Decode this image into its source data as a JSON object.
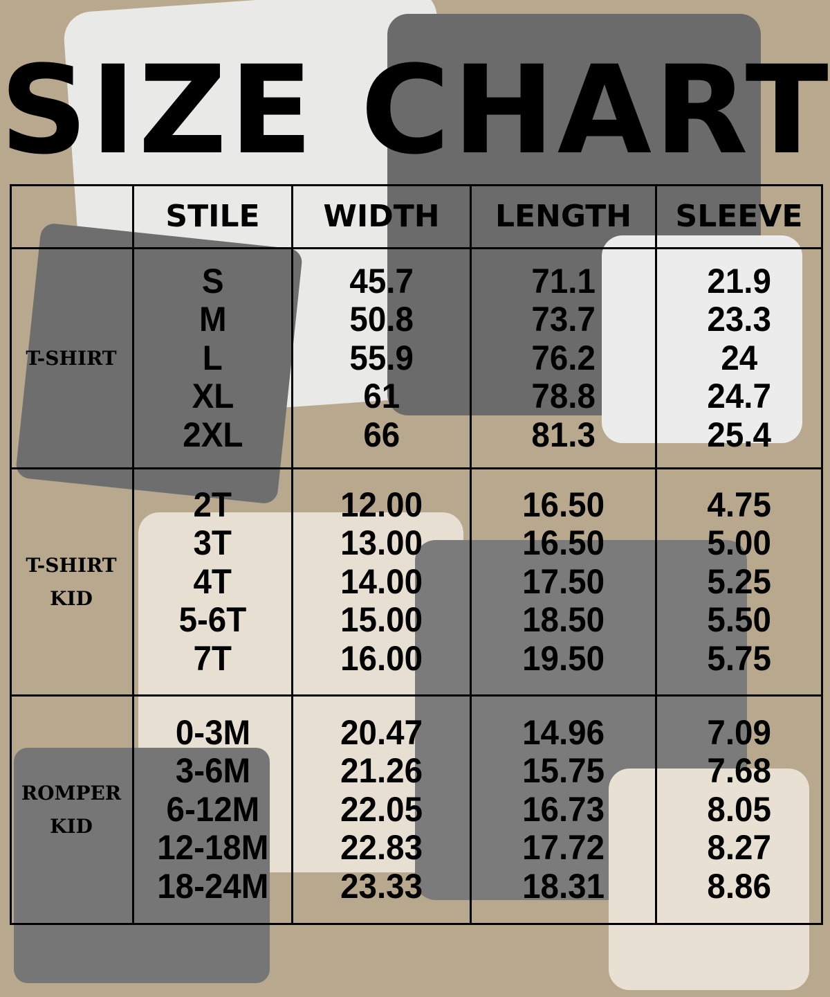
{
  "title": "SIZE CHART",
  "headers": [
    "STILE",
    "WIDTH",
    "LENGTH",
    "SLEEVE"
  ],
  "groups": [
    {
      "label": [
        "T-SHIRT"
      ],
      "sizes": [
        "S",
        "M",
        "L",
        "XL",
        "2XL"
      ],
      "width": [
        "45.7",
        "50.8",
        "55.9",
        "61",
        "66"
      ],
      "length": [
        "71.1",
        "73.7",
        "76.2",
        "78.8",
        "81.3"
      ],
      "sleeve": [
        "21.9",
        "23.3",
        "24",
        "24.7",
        "25.4"
      ]
    },
    {
      "label": [
        "T-SHIRT",
        "KID"
      ],
      "sizes": [
        "2T",
        "3T",
        "4T",
        "5-6T",
        "7T"
      ],
      "width": [
        "12.00",
        "13.00",
        "14.00",
        "15.00",
        "16.00"
      ],
      "length": [
        "16.50",
        "16.50",
        "17.50",
        "18.50",
        "19.50"
      ],
      "sleeve": [
        "4.75",
        "5.00",
        "5.25",
        "5.50",
        "5.75"
      ]
    },
    {
      "label": [
        "ROMPER",
        "KID"
      ],
      "sizes": [
        "0-3M",
        "3-6M",
        "6-12M",
        "12-18M",
        "18-24M"
      ],
      "width": [
        "20.47",
        "21.26",
        "22.05",
        "22.83",
        "23.33"
      ],
      "length": [
        "14.96",
        "15.75",
        "16.73",
        "17.72",
        "18.31"
      ],
      "sleeve": [
        "7.09",
        "7.68",
        "8.05",
        "8.27",
        "8.86"
      ]
    }
  ],
  "chart_data": {
    "type": "table",
    "title": "SIZE CHART",
    "columns": [
      "",
      "STILE",
      "WIDTH",
      "LENGTH",
      "SLEEVE"
    ]
  }
}
